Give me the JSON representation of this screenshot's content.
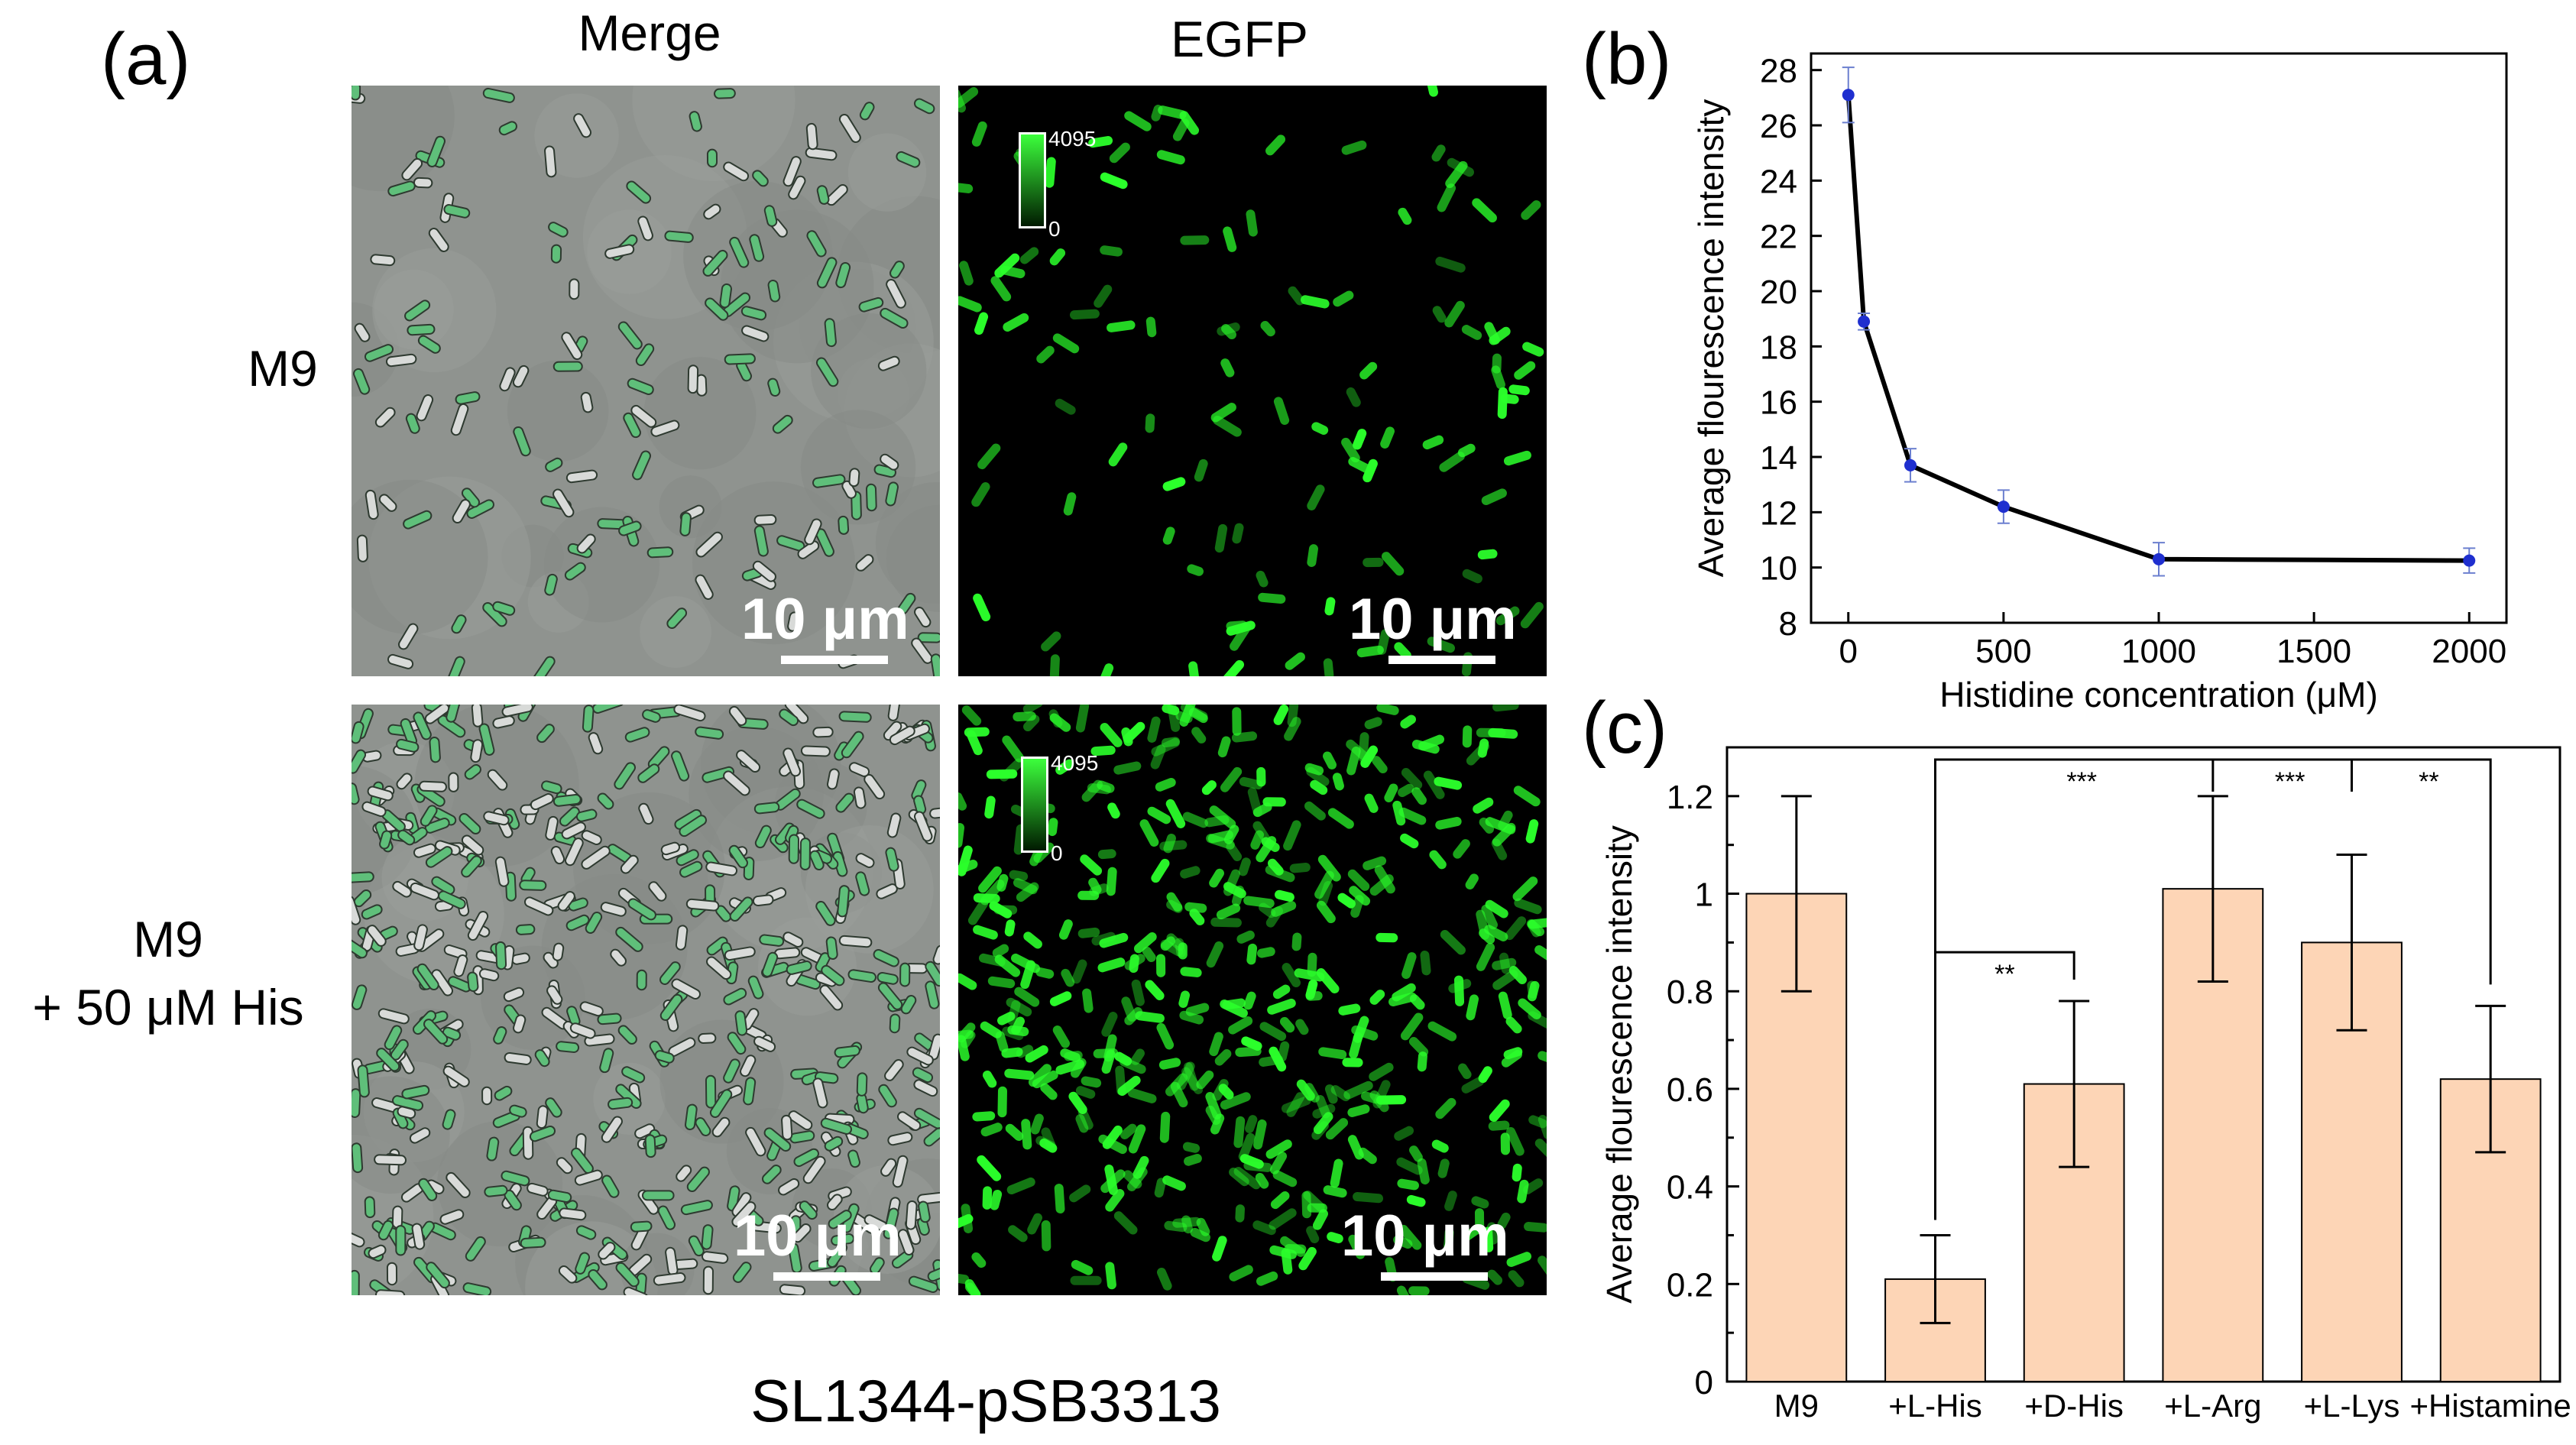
{
  "panel_labels": {
    "a": "(a)",
    "b": "(b)",
    "c": "(c)"
  },
  "microscopy": {
    "col_titles": [
      "Merge",
      "EGFP"
    ],
    "row_labels": [
      [
        "M9"
      ],
      [
        "M9",
        "+ 50 μM His"
      ]
    ],
    "scale_bar_text": "10 μm",
    "colorbar": {
      "max": "4095",
      "min": "0"
    },
    "caption": "SL1344-pSB3313"
  },
  "colors": {
    "line": "#000000",
    "marker": "#1f2fcf",
    "errorbar_b": "#6b7fcf",
    "bar_fill": "#fdd5b6",
    "bar_edge": "#000000",
    "fluor_green": "#2bff2b",
    "brightfield": "#8f938f"
  },
  "chart_data": [
    {
      "type": "line",
      "xlabel": "Histidine concentration (μM)",
      "ylabel": "Average flourescence intensity",
      "xlim": [
        -120,
        2120
      ],
      "ylim": [
        8,
        28.6
      ],
      "xticks": [
        0,
        500,
        1000,
        1500,
        2000
      ],
      "yticks": [
        8,
        10,
        12,
        14,
        16,
        18,
        20,
        22,
        24,
        26,
        28
      ],
      "x": [
        0,
        50,
        200,
        500,
        1000,
        2000
      ],
      "y": [
        27.1,
        18.9,
        13.7,
        12.2,
        10.3,
        10.25
      ],
      "yerr": [
        1.0,
        0.3,
        0.6,
        0.6,
        0.6,
        0.45
      ],
      "grid": false
    },
    {
      "type": "bar",
      "xlabel": "",
      "ylabel": "Average flourescence intensity",
      "categories": [
        "M9",
        "+L-His",
        "+D-His",
        "+L-Arg",
        "+L-Lys",
        "+Histamine"
      ],
      "values": [
        1.0,
        0.21,
        0.61,
        1.01,
        0.9,
        0.62
      ],
      "yerr": [
        0.2,
        0.09,
        0.17,
        0.19,
        0.18,
        0.15
      ],
      "ylim": [
        0,
        1.3
      ],
      "yticks": [
        0,
        0.2,
        0.4,
        0.6,
        0.8,
        1,
        1.2
      ],
      "ytick_labels": [
        "0",
        "0.2",
        "0.4",
        "0.6",
        "0.8",
        "1",
        "1.2"
      ],
      "significance": [
        {
          "from": "+L-His",
          "to": "+D-His",
          "label": "**"
        },
        {
          "from": "+L-His",
          "to": "+L-Arg",
          "label": "***"
        },
        {
          "from": "+L-His",
          "to": "+L-Lys",
          "label": "***"
        },
        {
          "from": "+L-His",
          "to": "+Histamine",
          "label": "**"
        }
      ],
      "grid": false
    }
  ]
}
